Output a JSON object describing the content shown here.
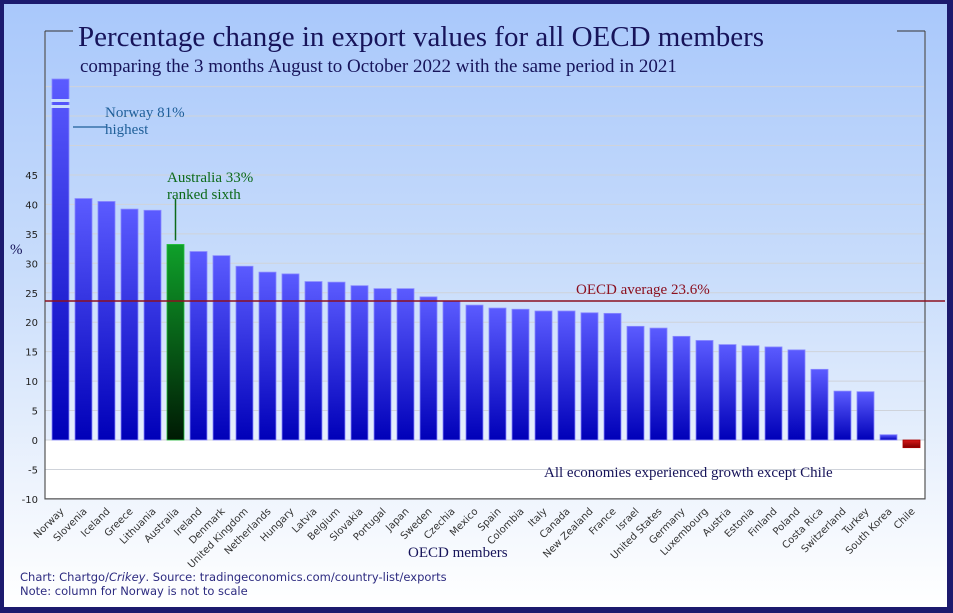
{
  "chart_data": {
    "type": "bar",
    "title": "Percentage change in export values for all OECD members",
    "subtitle": "comparing the 3 months August to October 2022 with the same period in 2021",
    "xlabel": "OECD members",
    "ylabel": "%",
    "ylim": [
      -10,
      45
    ],
    "yticks": [
      45,
      40,
      35,
      30,
      25,
      20,
      15,
      10,
      5,
      0,
      -5,
      -10
    ],
    "grid": true,
    "categories": [
      "Norway",
      "Slovenia",
      "Iceland",
      "Greece",
      "Lithuania",
      "Australia",
      "Ireland",
      "Denmark",
      "United Kingdom",
      "Netherlands",
      "Hungary",
      "Latvia",
      "Belgium",
      "Slovakia",
      "Portugal",
      "Japan",
      "Sweden",
      "Czechia",
      "Mexico",
      "Spain",
      "Colombia",
      "Italy",
      "Canada",
      "New Zealand",
      "France",
      "Israel",
      "United States",
      "Germany",
      "Luxembourg",
      "Austria",
      "Estonia",
      "Finland",
      "Poland",
      "Costa Rica",
      "Switzerland",
      "Turkey",
      "South Korea",
      "Chile"
    ],
    "values": [
      81,
      41.0,
      40.5,
      39.2,
      39.0,
      33.2,
      32.0,
      31.3,
      29.5,
      28.5,
      28.2,
      26.9,
      26.8,
      26.2,
      25.7,
      25.7,
      24.3,
      23.6,
      22.9,
      22.4,
      22.2,
      21.9,
      21.9,
      21.6,
      21.5,
      19.3,
      19.0,
      17.6,
      16.9,
      16.2,
      16.0,
      15.8,
      15.3,
      12.0,
      8.3,
      8.2,
      0.9,
      -1.3
    ],
    "highlight": {
      "index": 5,
      "color": "#0a7a1a"
    },
    "negative_color": "#c01010",
    "bar_color": "#3a3af0",
    "not_to_scale_index": 0,
    "reference_line": {
      "value": 23.6,
      "label": "OECD average 23.6%",
      "color": "#8b1020"
    },
    "annotations": [
      {
        "line1": "Norway 81%",
        "line2": "highest",
        "color": "#1f5f99"
      },
      {
        "line1": "Australia 33%",
        "line2": "ranked sixth",
        "color": "#0d6a1a"
      },
      {
        "line1": "All economies experienced growth except Chile",
        "color": "#17145a"
      }
    ]
  },
  "footer": {
    "credit_prefix": "Chart: Chartgo/",
    "credit_italic": "Crikey",
    "credit_suffix": ". Source: tradingeconomics.com/country-list/exports",
    "note": "Note: column for Norway is not to scale"
  }
}
